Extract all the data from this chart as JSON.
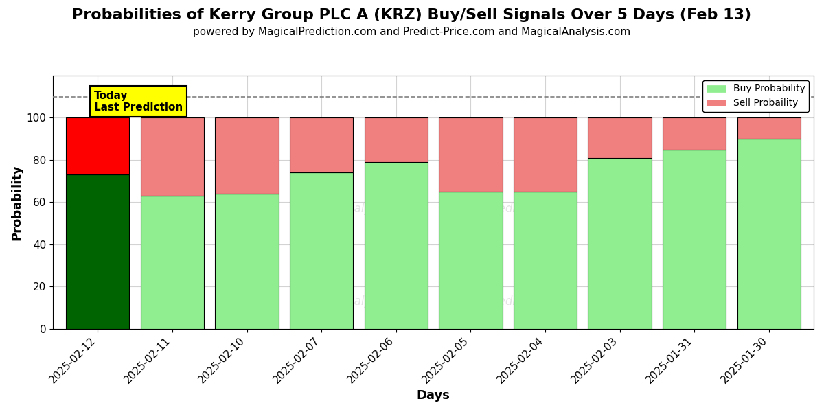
{
  "title": "Probabilities of Kerry Group PLC A (KRZ) Buy/Sell Signals Over 5 Days (Feb 13)",
  "subtitle": "powered by MagicalPrediction.com and Predict-Price.com and MagicalAnalysis.com",
  "xlabel": "Days",
  "ylabel": "Probability",
  "dates": [
    "2025-02-12",
    "2025-02-11",
    "2025-02-10",
    "2025-02-07",
    "2025-02-06",
    "2025-02-05",
    "2025-02-04",
    "2025-02-03",
    "2025-01-31",
    "2025-01-30"
  ],
  "buy_values": [
    73,
    63,
    64,
    74,
    79,
    65,
    65,
    81,
    85,
    90
  ],
  "sell_values": [
    27,
    37,
    36,
    26,
    21,
    35,
    35,
    19,
    15,
    10
  ],
  "today_buy_color": "#006400",
  "today_sell_color": "#FF0000",
  "regular_buy_color": "#90EE90",
  "regular_sell_color": "#F08080",
  "today_label_bg": "#FFFF00",
  "dashed_line_y": 110,
  "ylim": [
    0,
    120
  ],
  "yticks": [
    0,
    20,
    40,
    60,
    80,
    100
  ],
  "legend_buy_label": "Buy Probability",
  "legend_sell_label": "Sell Probaility",
  "title_fontsize": 16,
  "subtitle_fontsize": 11,
  "axis_label_fontsize": 13,
  "tick_fontsize": 11
}
